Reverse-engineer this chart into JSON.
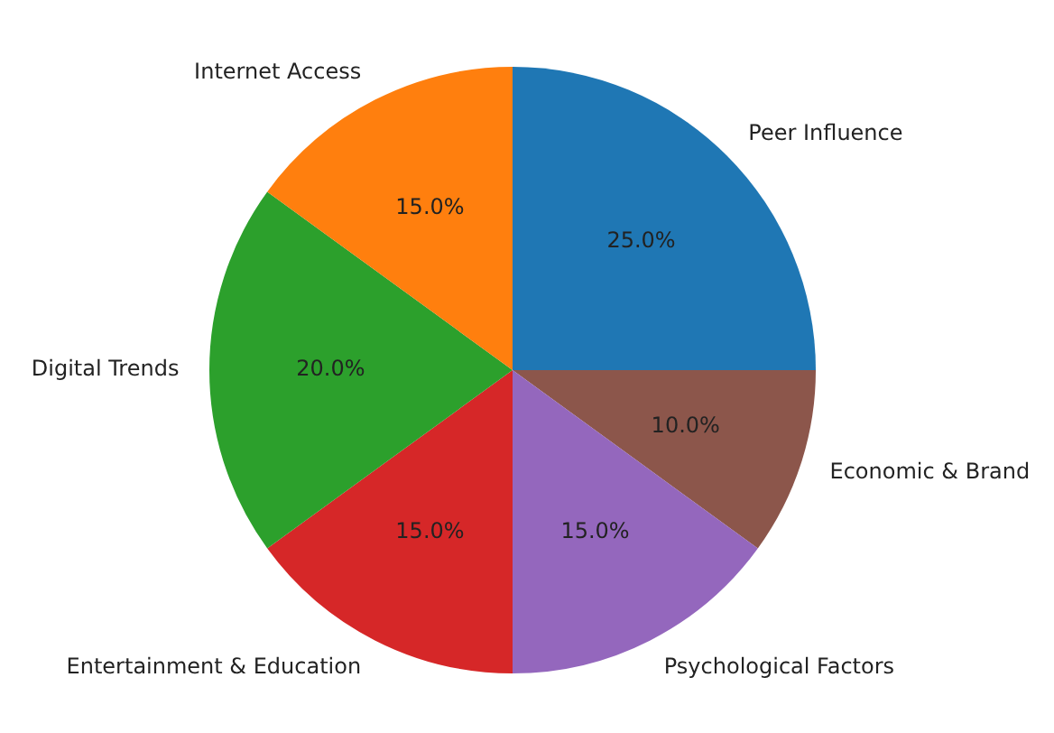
{
  "chart_data": {
    "type": "pie",
    "categories": [
      "Peer Influence",
      "Economic & Brand",
      "Psychological Factors",
      "Entertainment & Education",
      "Digital Trends",
      "Internet Access"
    ],
    "values": [
      25,
      10,
      15,
      15,
      20,
      15
    ],
    "colors": [
      "#1f77b4",
      "#8c564b",
      "#9467bd",
      "#d62728",
      "#2ca02c",
      "#ff7f0e"
    ],
    "value_labels": [
      "25.0%",
      "10.0%",
      "15.0%",
      "15.0%",
      "20.0%",
      "15.0%"
    ]
  }
}
